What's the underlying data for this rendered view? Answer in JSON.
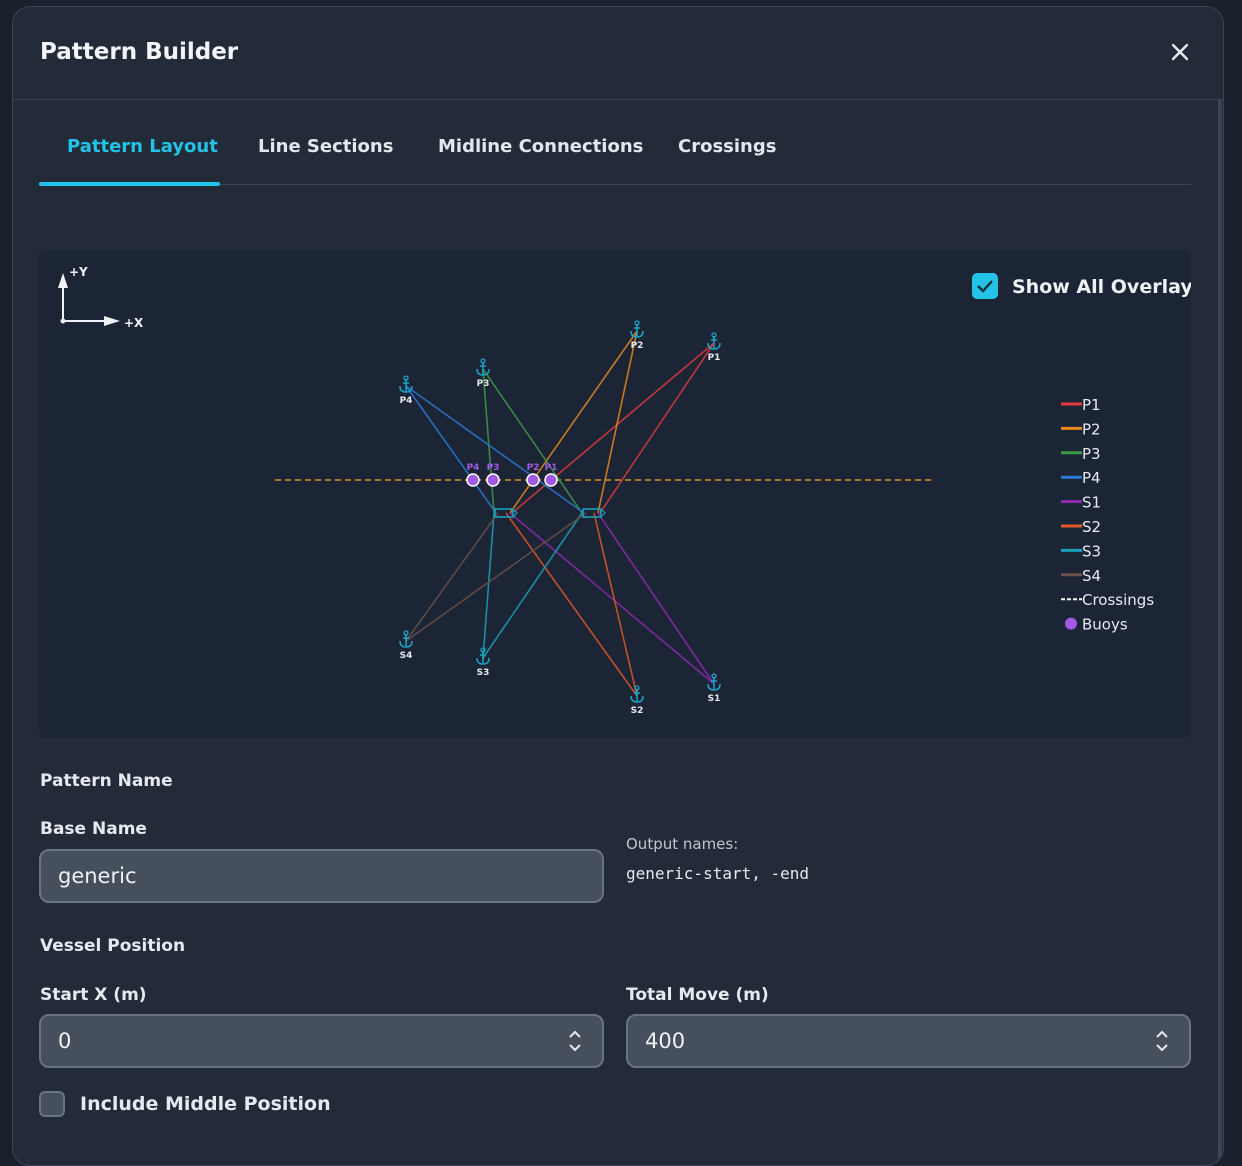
{
  "dialog": {
    "title": "Pattern Builder"
  },
  "tabs": [
    "Pattern Layout",
    "Line Sections",
    "Midline Connections",
    "Crossings"
  ],
  "layout": {
    "axes": {
      "y": "+Y",
      "x": "+X"
    },
    "overlay_toggle": "Show All Overlay",
    "anchors": [
      "P1",
      "P2",
      "P3",
      "P4",
      "S1",
      "S2",
      "S3",
      "S4"
    ],
    "buoys": [
      "P4",
      "P3",
      "P2",
      "P1"
    ],
    "legend": [
      {
        "name": "P1",
        "color": "#e0393e"
      },
      {
        "name": "P2",
        "color": "#e8891c"
      },
      {
        "name": "P3",
        "color": "#3d9a48"
      },
      {
        "name": "P4",
        "color": "#2a7ad2"
      },
      {
        "name": "S1",
        "color": "#8e2ab0"
      },
      {
        "name": "S2",
        "color": "#e0582a"
      },
      {
        "name": "S3",
        "color": "#1aa0b8"
      },
      {
        "name": "S4",
        "color": "#6a5048"
      },
      {
        "name": "Crossings",
        "color": "#ffffff"
      },
      {
        "name": "Buoys",
        "color": "#a259e6"
      }
    ]
  },
  "form": {
    "pattern_name": "Pattern Name",
    "base_name_label": "Base Name",
    "base_name_value": "generic",
    "output_label": "Output names:",
    "output_value": "generic-start, -end",
    "vessel_position": "Vessel Position",
    "start_x_label": "Start X (m)",
    "start_x_value": 0,
    "total_move_label": "Total Move (m)",
    "total_move_value": 400,
    "include_middle": "Include Middle Position"
  }
}
